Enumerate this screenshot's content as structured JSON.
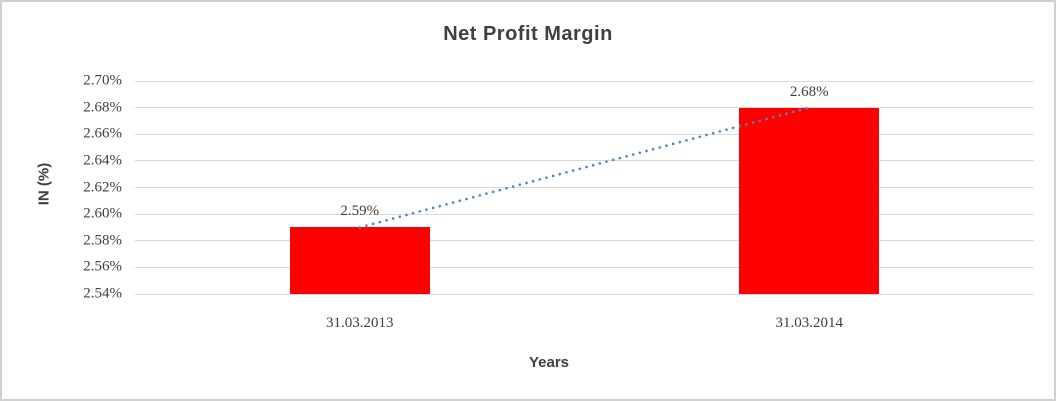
{
  "chart_data": {
    "type": "bar",
    "title": "Net Profit Margin",
    "xlabel": "Years",
    "ylabel": "IN (%)",
    "categories": [
      "31.03.2013",
      "31.03.2014"
    ],
    "values": [
      2.59,
      2.68
    ],
    "data_labels": [
      "2.59%",
      "2.68%"
    ],
    "y_tick_labels": [
      "2.70%",
      "2.68%",
      "2.66%",
      "2.64%",
      "2.62%",
      "2.60%",
      "2.58%",
      "2.56%",
      "2.54%"
    ],
    "ylim": [
      2.54,
      2.7
    ],
    "ytick_step": 0.02,
    "unit": "%",
    "grid": "horizontal",
    "legend": "none",
    "trendline": {
      "type": "linear",
      "style": "dotted",
      "connects": [
        "31.03.2013",
        "31.03.2014"
      ]
    },
    "colors": {
      "bar": "#FF0000",
      "trendline": "#4A86C8",
      "gridline": "#D9D9D9",
      "title_text": "#404040",
      "tick_text": "#3F3F3F",
      "frame_border": "#D0D0D0"
    }
  }
}
